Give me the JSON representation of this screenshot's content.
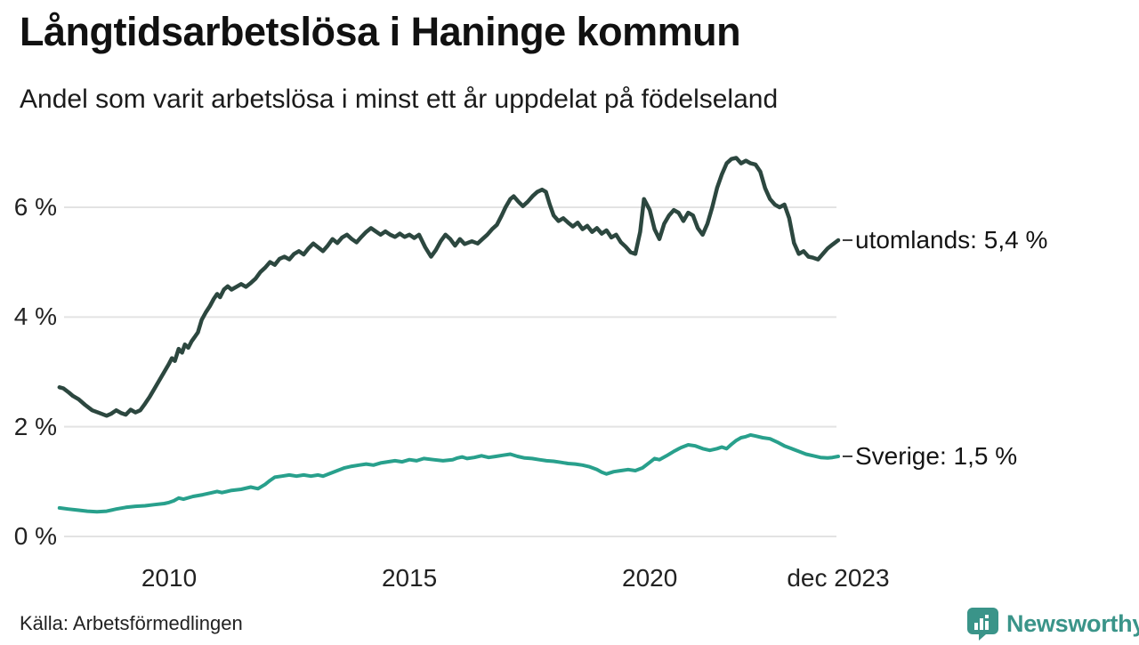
{
  "header": {
    "title": "Långtidsarbetslösa i Haninge kommun",
    "subtitle": "Andel som varit arbetslösa i minst ett år uppdelat på födelseland"
  },
  "chart_data": {
    "type": "line",
    "title": "Långtidsarbetslösa i Haninge kommun",
    "subtitle": "Andel som varit arbetslösa i minst ett år uppdelat på födelseland",
    "unit": "%",
    "xlim": [
      2007.7,
      2023.95
    ],
    "ylim": [
      0,
      7.3
    ],
    "grid": "horizontal",
    "gridline_color": "#e3e3e3",
    "label_dash_color": "#3c3c3c",
    "yticks": [
      {
        "value": 6,
        "label": "6 %"
      },
      {
        "value": 4,
        "label": "4 %"
      },
      {
        "value": 2,
        "label": "2 %"
      },
      {
        "value": 0,
        "label": "0 %"
      }
    ],
    "xticks": [
      {
        "value": 2010,
        "label": "2010"
      },
      {
        "value": 2015,
        "label": "2015"
      },
      {
        "value": 2020,
        "label": "2020"
      },
      {
        "value": 2023.92,
        "label": "dec 2023"
      }
    ],
    "series": [
      {
        "name": "utomlands",
        "label": "utomlands: 5,4 %",
        "last_value_label": "5,4 %",
        "color": "#2c473f",
        "stroke_width": 4.5,
        "points": [
          [
            2007.72,
            2.72
          ],
          [
            2007.8,
            2.7
          ],
          [
            2007.92,
            2.62
          ],
          [
            2008.0,
            2.56
          ],
          [
            2008.12,
            2.5
          ],
          [
            2008.25,
            2.4
          ],
          [
            2008.4,
            2.3
          ],
          [
            2008.55,
            2.25
          ],
          [
            2008.7,
            2.2
          ],
          [
            2008.8,
            2.24
          ],
          [
            2008.9,
            2.3
          ],
          [
            2009.0,
            2.25
          ],
          [
            2009.1,
            2.22
          ],
          [
            2009.2,
            2.31
          ],
          [
            2009.3,
            2.26
          ],
          [
            2009.4,
            2.3
          ],
          [
            2009.5,
            2.42
          ],
          [
            2009.6,
            2.55
          ],
          [
            2009.7,
            2.7
          ],
          [
            2009.8,
            2.85
          ],
          [
            2009.9,
            3.0
          ],
          [
            2010.0,
            3.15
          ],
          [
            2010.06,
            3.25
          ],
          [
            2010.12,
            3.2
          ],
          [
            2010.2,
            3.42
          ],
          [
            2010.27,
            3.35
          ],
          [
            2010.33,
            3.5
          ],
          [
            2010.4,
            3.44
          ],
          [
            2010.47,
            3.56
          ],
          [
            2010.53,
            3.63
          ],
          [
            2010.6,
            3.72
          ],
          [
            2010.68,
            3.95
          ],
          [
            2010.76,
            4.08
          ],
          [
            2010.85,
            4.2
          ],
          [
            2010.93,
            4.33
          ],
          [
            2011.0,
            4.42
          ],
          [
            2011.06,
            4.36
          ],
          [
            2011.14,
            4.5
          ],
          [
            2011.22,
            4.56
          ],
          [
            2011.3,
            4.5
          ],
          [
            2011.4,
            4.55
          ],
          [
            2011.5,
            4.6
          ],
          [
            2011.6,
            4.55
          ],
          [
            2011.7,
            4.62
          ],
          [
            2011.8,
            4.7
          ],
          [
            2011.9,
            4.82
          ],
          [
            2012.0,
            4.9
          ],
          [
            2012.1,
            5.0
          ],
          [
            2012.2,
            4.95
          ],
          [
            2012.3,
            5.06
          ],
          [
            2012.4,
            5.1
          ],
          [
            2012.5,
            5.05
          ],
          [
            2012.6,
            5.15
          ],
          [
            2012.7,
            5.2
          ],
          [
            2012.8,
            5.14
          ],
          [
            2012.9,
            5.25
          ],
          [
            2013.0,
            5.34
          ],
          [
            2013.1,
            5.27
          ],
          [
            2013.2,
            5.2
          ],
          [
            2013.3,
            5.3
          ],
          [
            2013.4,
            5.42
          ],
          [
            2013.5,
            5.35
          ],
          [
            2013.6,
            5.45
          ],
          [
            2013.7,
            5.5
          ],
          [
            2013.8,
            5.42
          ],
          [
            2013.9,
            5.36
          ],
          [
            2014.0,
            5.46
          ],
          [
            2014.1,
            5.55
          ],
          [
            2014.2,
            5.62
          ],
          [
            2014.3,
            5.56
          ],
          [
            2014.4,
            5.5
          ],
          [
            2014.5,
            5.56
          ],
          [
            2014.6,
            5.5
          ],
          [
            2014.7,
            5.46
          ],
          [
            2014.8,
            5.52
          ],
          [
            2014.9,
            5.46
          ],
          [
            2015.0,
            5.5
          ],
          [
            2015.1,
            5.44
          ],
          [
            2015.2,
            5.5
          ],
          [
            2015.33,
            5.27
          ],
          [
            2015.45,
            5.1
          ],
          [
            2015.55,
            5.22
          ],
          [
            2015.65,
            5.38
          ],
          [
            2015.75,
            5.5
          ],
          [
            2015.85,
            5.42
          ],
          [
            2015.95,
            5.3
          ],
          [
            2016.05,
            5.42
          ],
          [
            2016.15,
            5.33
          ],
          [
            2016.3,
            5.38
          ],
          [
            2016.42,
            5.34
          ],
          [
            2016.52,
            5.42
          ],
          [
            2016.62,
            5.5
          ],
          [
            2016.72,
            5.6
          ],
          [
            2016.82,
            5.68
          ],
          [
            2016.92,
            5.85
          ],
          [
            2017.0,
            6.0
          ],
          [
            2017.1,
            6.15
          ],
          [
            2017.17,
            6.2
          ],
          [
            2017.27,
            6.1
          ],
          [
            2017.36,
            6.02
          ],
          [
            2017.46,
            6.1
          ],
          [
            2017.56,
            6.2
          ],
          [
            2017.66,
            6.28
          ],
          [
            2017.76,
            6.32
          ],
          [
            2017.84,
            6.28
          ],
          [
            2017.92,
            6.05
          ],
          [
            2018.0,
            5.85
          ],
          [
            2018.1,
            5.75
          ],
          [
            2018.2,
            5.8
          ],
          [
            2018.3,
            5.72
          ],
          [
            2018.4,
            5.65
          ],
          [
            2018.5,
            5.72
          ],
          [
            2018.6,
            5.6
          ],
          [
            2018.7,
            5.66
          ],
          [
            2018.8,
            5.55
          ],
          [
            2018.9,
            5.62
          ],
          [
            2019.0,
            5.52
          ],
          [
            2019.1,
            5.58
          ],
          [
            2019.2,
            5.45
          ],
          [
            2019.3,
            5.5
          ],
          [
            2019.4,
            5.36
          ],
          [
            2019.5,
            5.28
          ],
          [
            2019.6,
            5.18
          ],
          [
            2019.7,
            5.15
          ],
          [
            2019.8,
            5.55
          ],
          [
            2019.88,
            6.15
          ],
          [
            2020.0,
            5.95
          ],
          [
            2020.1,
            5.6
          ],
          [
            2020.2,
            5.42
          ],
          [
            2020.3,
            5.7
          ],
          [
            2020.4,
            5.85
          ],
          [
            2020.5,
            5.95
          ],
          [
            2020.6,
            5.9
          ],
          [
            2020.7,
            5.75
          ],
          [
            2020.8,
            5.9
          ],
          [
            2020.9,
            5.85
          ],
          [
            2021.0,
            5.62
          ],
          [
            2021.1,
            5.5
          ],
          [
            2021.2,
            5.7
          ],
          [
            2021.3,
            6.0
          ],
          [
            2021.4,
            6.35
          ],
          [
            2021.5,
            6.6
          ],
          [
            2021.6,
            6.8
          ],
          [
            2021.7,
            6.88
          ],
          [
            2021.8,
            6.9
          ],
          [
            2021.9,
            6.8
          ],
          [
            2022.0,
            6.85
          ],
          [
            2022.1,
            6.8
          ],
          [
            2022.2,
            6.78
          ],
          [
            2022.3,
            6.65
          ],
          [
            2022.4,
            6.35
          ],
          [
            2022.5,
            6.15
          ],
          [
            2022.6,
            6.05
          ],
          [
            2022.7,
            6.0
          ],
          [
            2022.8,
            6.05
          ],
          [
            2022.9,
            5.8
          ],
          [
            2023.0,
            5.35
          ],
          [
            2023.1,
            5.15
          ],
          [
            2023.2,
            5.2
          ],
          [
            2023.3,
            5.1
          ],
          [
            2023.4,
            5.08
          ],
          [
            2023.5,
            5.05
          ],
          [
            2023.6,
            5.15
          ],
          [
            2023.7,
            5.25
          ],
          [
            2023.8,
            5.32
          ],
          [
            2023.92,
            5.4
          ]
        ]
      },
      {
        "name": "Sverige",
        "label": "Sverige: 1,5 %",
        "last_value_label": "1,5 %",
        "color": "#28a08c",
        "stroke_width": 4,
        "points": [
          [
            2007.72,
            0.52
          ],
          [
            2007.9,
            0.5
          ],
          [
            2008.1,
            0.48
          ],
          [
            2008.3,
            0.46
          ],
          [
            2008.5,
            0.45
          ],
          [
            2008.7,
            0.46
          ],
          [
            2008.9,
            0.5
          ],
          [
            2009.1,
            0.53
          ],
          [
            2009.3,
            0.55
          ],
          [
            2009.5,
            0.56
          ],
          [
            2009.7,
            0.58
          ],
          [
            2009.9,
            0.6
          ],
          [
            2010.0,
            0.62
          ],
          [
            2010.1,
            0.65
          ],
          [
            2010.2,
            0.7
          ],
          [
            2010.3,
            0.68
          ],
          [
            2010.5,
            0.73
          ],
          [
            2010.7,
            0.76
          ],
          [
            2010.9,
            0.8
          ],
          [
            2011.0,
            0.82
          ],
          [
            2011.1,
            0.8
          ],
          [
            2011.3,
            0.84
          ],
          [
            2011.5,
            0.86
          ],
          [
            2011.7,
            0.9
          ],
          [
            2011.85,
            0.87
          ],
          [
            2012.0,
            0.95
          ],
          [
            2012.1,
            1.02
          ],
          [
            2012.2,
            1.08
          ],
          [
            2012.35,
            1.1
          ],
          [
            2012.5,
            1.12
          ],
          [
            2012.65,
            1.1
          ],
          [
            2012.8,
            1.12
          ],
          [
            2012.95,
            1.1
          ],
          [
            2013.1,
            1.12
          ],
          [
            2013.2,
            1.1
          ],
          [
            2013.35,
            1.15
          ],
          [
            2013.5,
            1.2
          ],
          [
            2013.65,
            1.25
          ],
          [
            2013.8,
            1.28
          ],
          [
            2013.95,
            1.3
          ],
          [
            2014.1,
            1.32
          ],
          [
            2014.25,
            1.3
          ],
          [
            2014.4,
            1.34
          ],
          [
            2014.55,
            1.36
          ],
          [
            2014.7,
            1.38
          ],
          [
            2014.85,
            1.36
          ],
          [
            2015.0,
            1.4
          ],
          [
            2015.15,
            1.38
          ],
          [
            2015.3,
            1.42
          ],
          [
            2015.5,
            1.4
          ],
          [
            2015.7,
            1.38
          ],
          [
            2015.9,
            1.4
          ],
          [
            2016.0,
            1.43
          ],
          [
            2016.1,
            1.45
          ],
          [
            2016.2,
            1.42
          ],
          [
            2016.35,
            1.44
          ],
          [
            2016.5,
            1.47
          ],
          [
            2016.65,
            1.44
          ],
          [
            2016.8,
            1.46
          ],
          [
            2016.95,
            1.48
          ],
          [
            2017.1,
            1.5
          ],
          [
            2017.25,
            1.46
          ],
          [
            2017.4,
            1.43
          ],
          [
            2017.55,
            1.42
          ],
          [
            2017.7,
            1.4
          ],
          [
            2017.85,
            1.38
          ],
          [
            2018.0,
            1.37
          ],
          [
            2018.15,
            1.35
          ],
          [
            2018.3,
            1.33
          ],
          [
            2018.45,
            1.32
          ],
          [
            2018.6,
            1.3
          ],
          [
            2018.75,
            1.27
          ],
          [
            2018.9,
            1.22
          ],
          [
            2019.0,
            1.17
          ],
          [
            2019.1,
            1.14
          ],
          [
            2019.25,
            1.18
          ],
          [
            2019.4,
            1.2
          ],
          [
            2019.55,
            1.22
          ],
          [
            2019.7,
            1.2
          ],
          [
            2019.85,
            1.25
          ],
          [
            2020.0,
            1.35
          ],
          [
            2020.1,
            1.42
          ],
          [
            2020.2,
            1.4
          ],
          [
            2020.35,
            1.47
          ],
          [
            2020.5,
            1.55
          ],
          [
            2020.65,
            1.62
          ],
          [
            2020.8,
            1.67
          ],
          [
            2020.95,
            1.65
          ],
          [
            2021.1,
            1.6
          ],
          [
            2021.25,
            1.57
          ],
          [
            2021.4,
            1.6
          ],
          [
            2021.5,
            1.63
          ],
          [
            2021.6,
            1.6
          ],
          [
            2021.7,
            1.68
          ],
          [
            2021.8,
            1.75
          ],
          [
            2021.9,
            1.8
          ],
          [
            2022.0,
            1.82
          ],
          [
            2022.1,
            1.85
          ],
          [
            2022.2,
            1.83
          ],
          [
            2022.35,
            1.8
          ],
          [
            2022.5,
            1.78
          ],
          [
            2022.65,
            1.72
          ],
          [
            2022.8,
            1.65
          ],
          [
            2022.95,
            1.6
          ],
          [
            2023.1,
            1.55
          ],
          [
            2023.25,
            1.5
          ],
          [
            2023.4,
            1.47
          ],
          [
            2023.55,
            1.44
          ],
          [
            2023.7,
            1.43
          ],
          [
            2023.8,
            1.44
          ],
          [
            2023.92,
            1.46
          ]
        ]
      }
    ]
  },
  "footer": {
    "source": "Källa: Arbetsförmedlingen",
    "brand": {
      "name": "Newsworthy",
      "color": "#3a9489",
      "icon": "bar-chart-speech-bubble"
    }
  }
}
